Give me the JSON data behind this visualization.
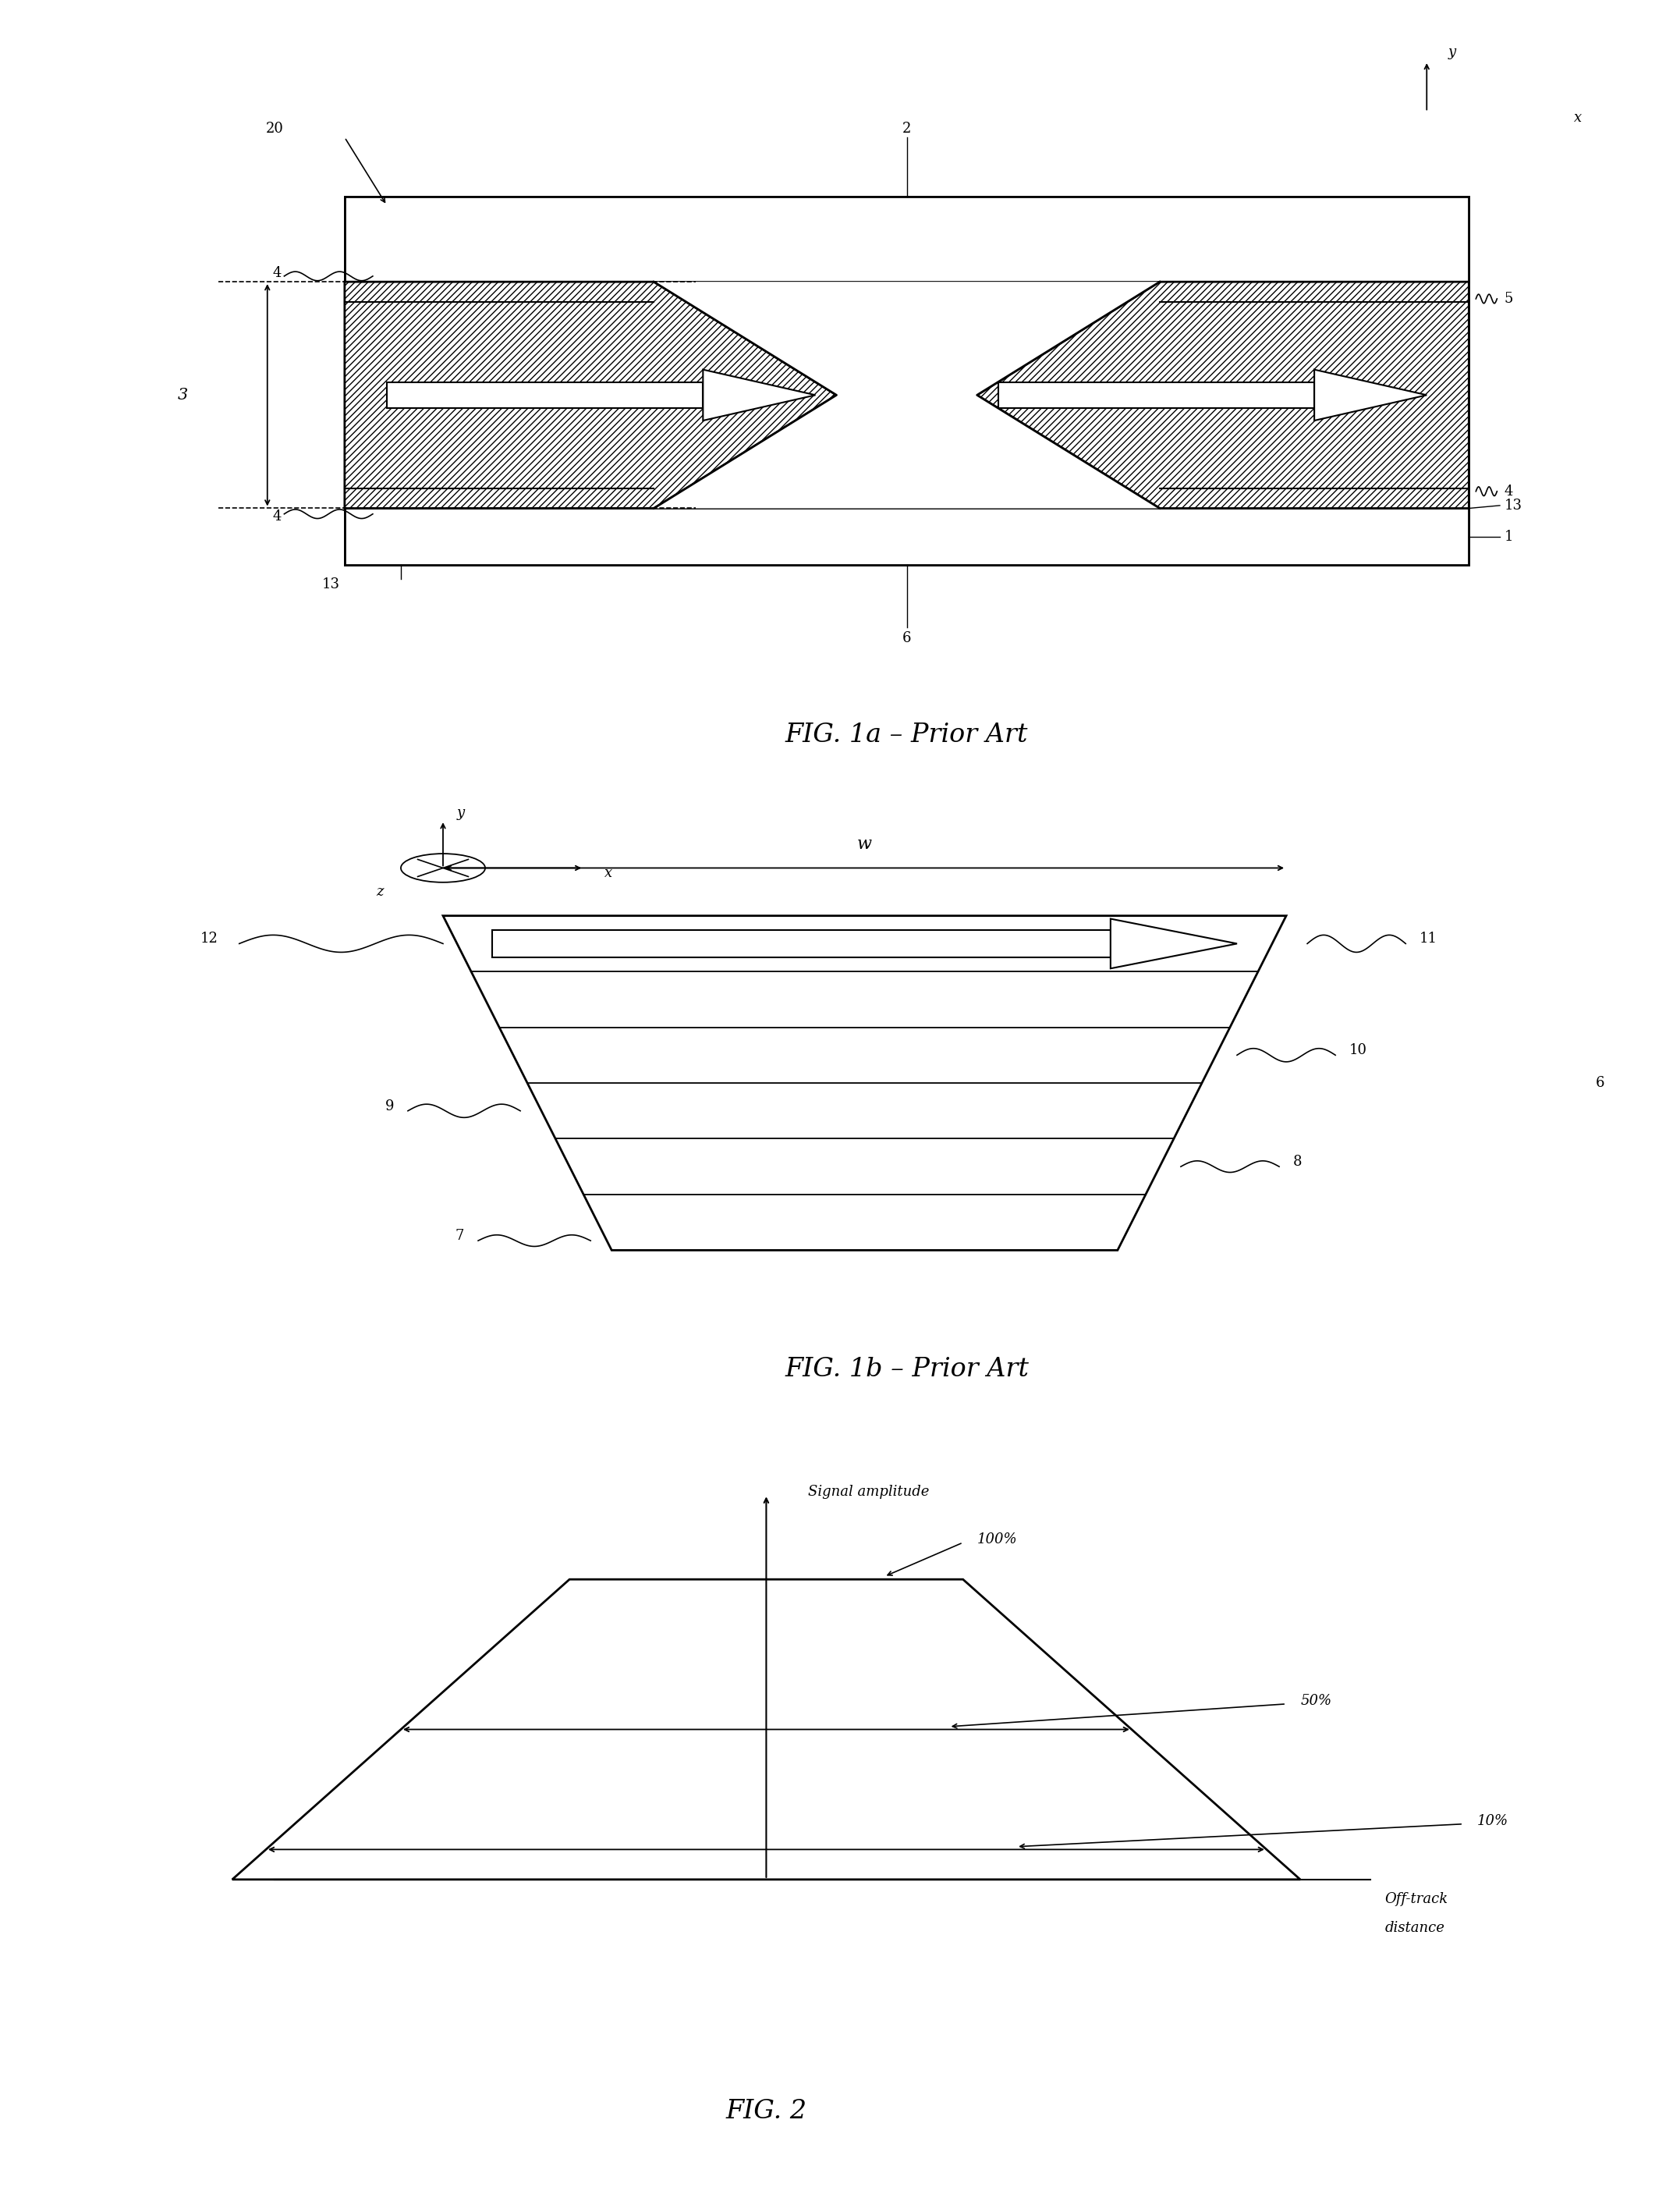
{
  "fig_width": 21.45,
  "fig_height": 28.35,
  "bg_color": "#ffffff",
  "line_color": "#000000",
  "fig1a_title": "FIG. 1a – Prior Art",
  "fig1b_title": "FIG. 1b – Prior Art",
  "fig2_title": "FIG. 2",
  "lw": 2.0
}
